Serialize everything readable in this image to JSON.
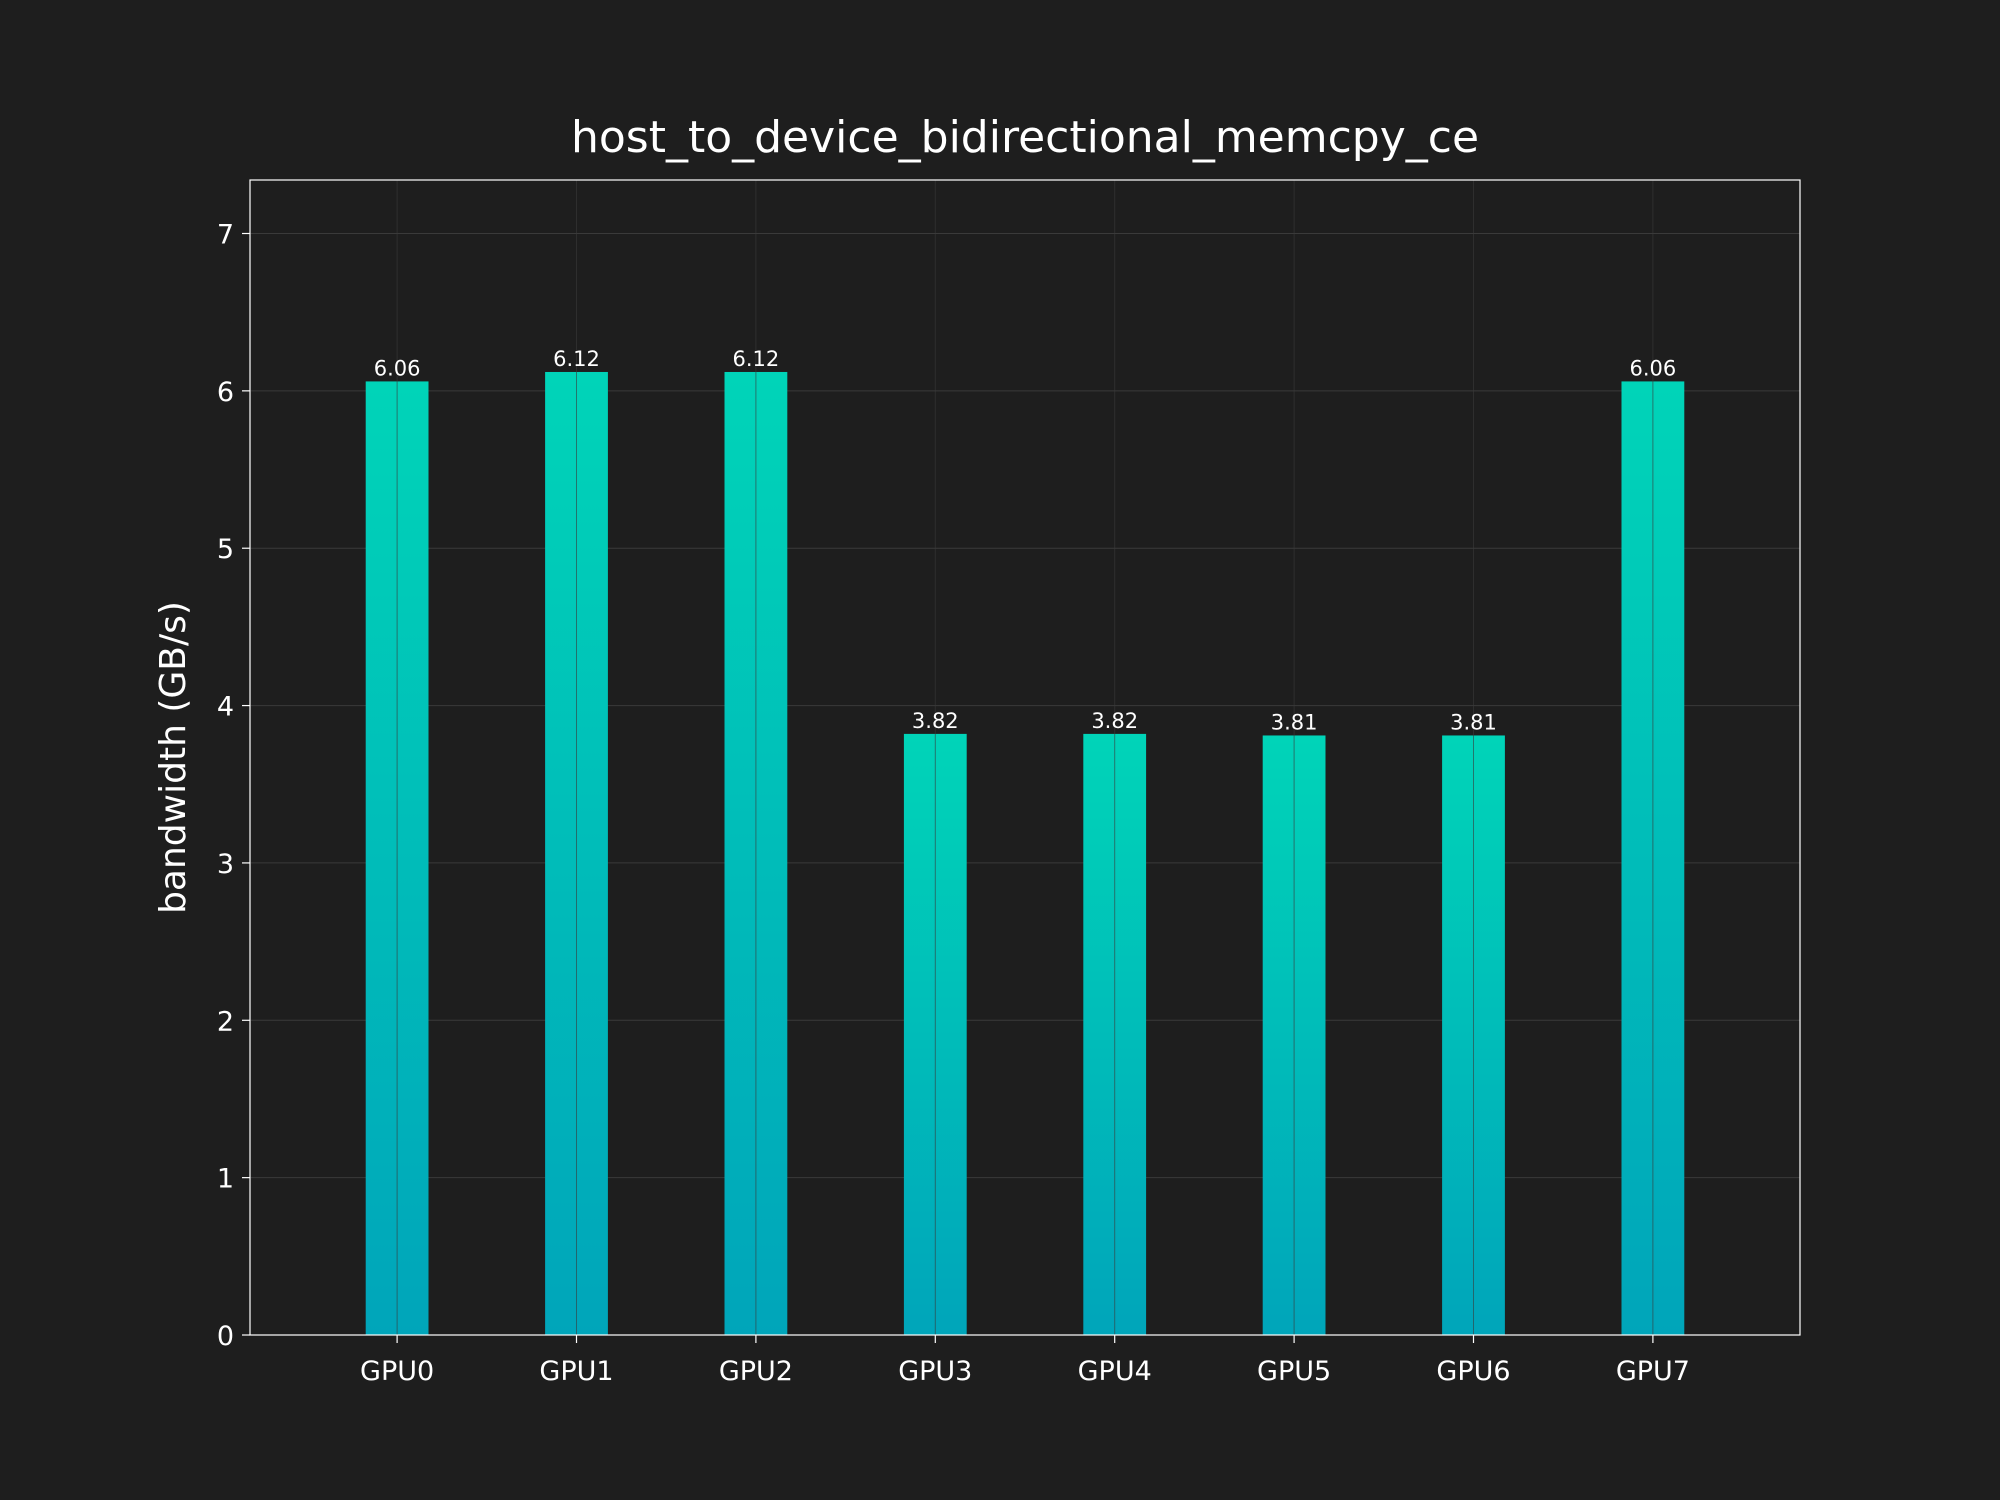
{
  "chart_data": {
    "type": "bar",
    "title": "host_to_device_bidirectional_memcpy_ce",
    "xlabel": "",
    "ylabel": "bandwidth (GB/s)",
    "categories": [
      "GPU0",
      "GPU1",
      "GPU2",
      "GPU3",
      "GPU4",
      "GPU5",
      "GPU6",
      "GPU7"
    ],
    "values": [
      6.06,
      6.12,
      6.12,
      3.82,
      3.82,
      3.81,
      3.81,
      6.06
    ],
    "value_labels": [
      "6.06",
      "6.12",
      "6.12",
      "3.82",
      "3.82",
      "3.81",
      "3.81",
      "6.06"
    ],
    "ylim": [
      0,
      7.34
    ],
    "yticks": [
      0,
      1,
      2,
      3,
      4,
      5,
      6,
      7
    ],
    "ytick_labels": [
      "0",
      "1",
      "2",
      "3",
      "4",
      "5",
      "6",
      "7"
    ],
    "grid": true,
    "legend": "none",
    "colors": {
      "background": "#1e1e1e",
      "bar_top": "#00d4b8",
      "bar_bottom": "#00a5ba",
      "text": "#ffffff",
      "grid": "#3a3a3a",
      "frame": "#ffffff"
    }
  }
}
